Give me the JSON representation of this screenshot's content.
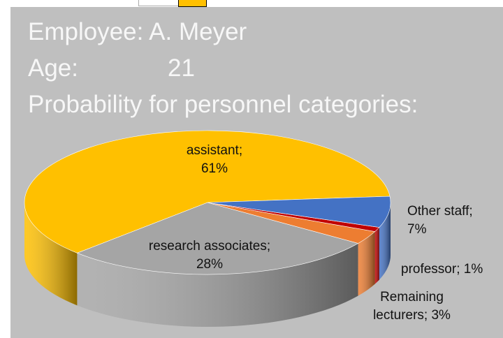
{
  "chart_data": {
    "type": "pie3d",
    "title": "Employee: A. Meyer",
    "age_label": "Age:",
    "age": 21,
    "subtitle": "Probability for personnel categories:",
    "values": [
      61,
      28,
      3,
      1,
      7
    ],
    "value_labels": [
      "assistant; 61%",
      "research associates; 28%",
      "Remaining lecturers; 3%",
      "professor; 1%",
      "Other staff; 7%"
    ],
    "colors": [
      "#ffc000",
      "#a5a5a5",
      "#ed7d31",
      "#c00000",
      "#4472c4"
    ]
  }
}
